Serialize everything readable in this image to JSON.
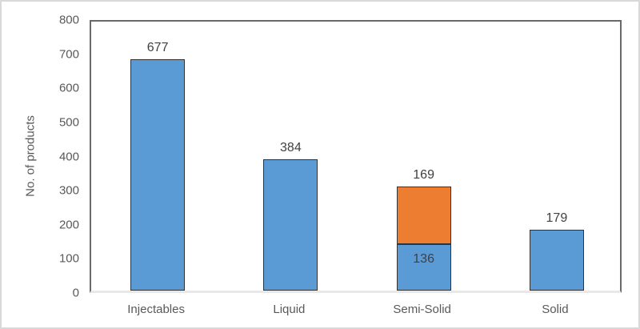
{
  "chart_data": {
    "type": "bar",
    "stacked": true,
    "title": "",
    "xlabel": "",
    "ylabel": "No. of products",
    "ylim": [
      0,
      800
    ],
    "ytick_step": 100,
    "yticks": [
      0,
      100,
      200,
      300,
      400,
      500,
      600,
      700,
      800
    ],
    "grid": false,
    "legend": "none",
    "categories": [
      "Injectables",
      "Liquid",
      "Semi-Solid",
      "Solid"
    ],
    "series": [
      {
        "name": "base-segment",
        "color": "#5B9BD5",
        "values": [
          677,
          384,
          136,
          179
        ]
      },
      {
        "name": "upper-segment",
        "color": "#ED7D31",
        "values": [
          0,
          0,
          169,
          0
        ]
      }
    ],
    "data_labels": {
      "above_bars": [
        "677",
        "384",
        "169",
        "179"
      ],
      "inside_segments": [
        null,
        null,
        "136",
        null
      ]
    },
    "colors": {
      "bar_blue": "#5B9BD5",
      "bar_orange": "#ED7D31",
      "bar_border": "#333333",
      "plot_border": "#696969",
      "baseline": "#e8e8e8",
      "axis_text": "#595959",
      "label_text": "#404040",
      "frame": "#d9d9d9"
    }
  }
}
